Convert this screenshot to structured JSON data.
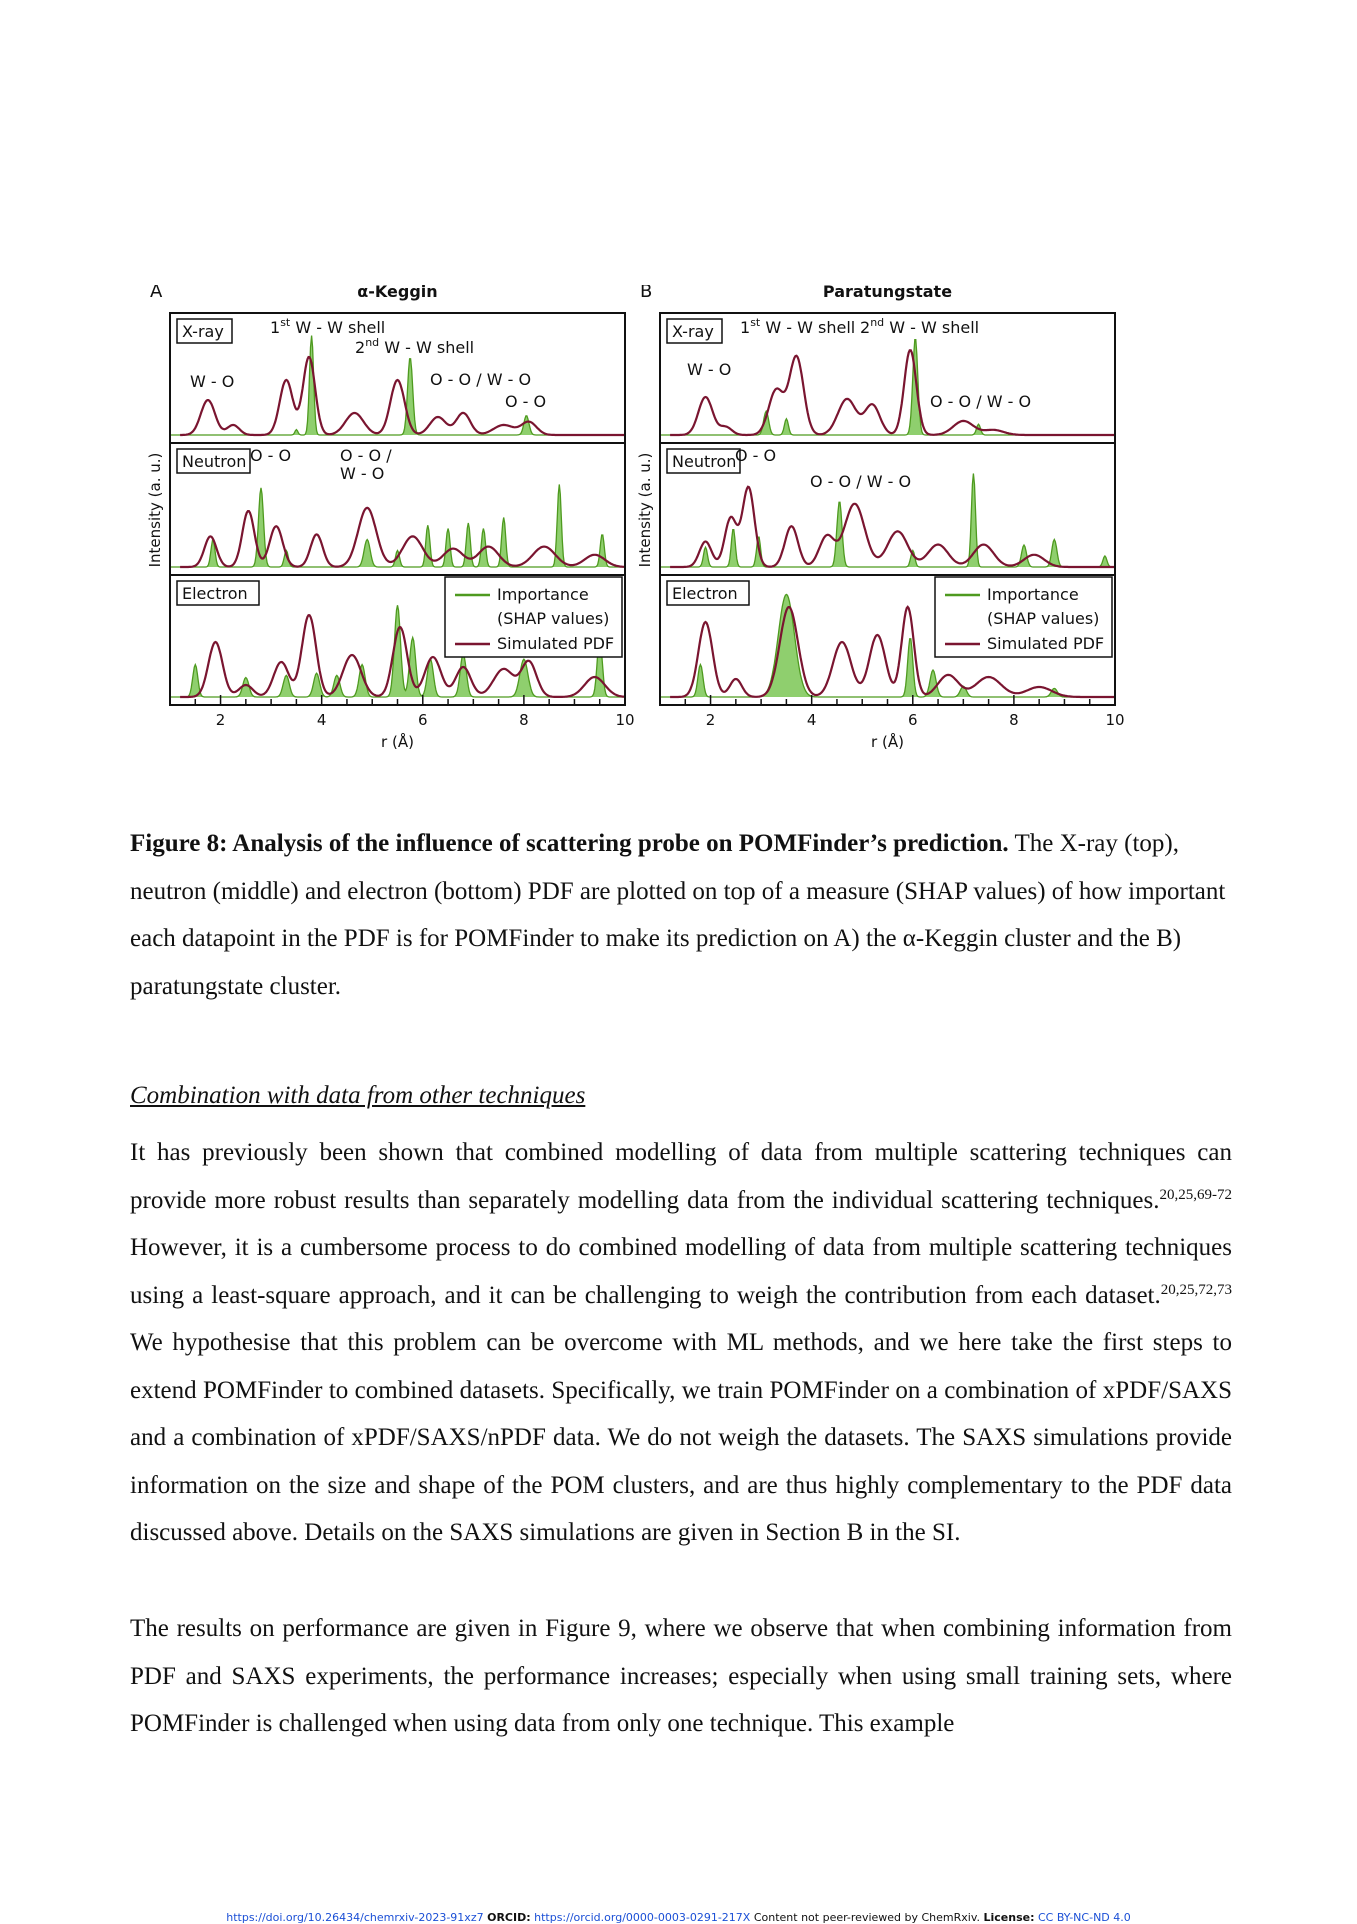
{
  "figure": {
    "panels": [
      {
        "letter": "A",
        "title": "α-Keggin",
        "probes": [
          {
            "name": "X-ray",
            "annotations": [
              {
                "t": "1",
                "sup": "st",
                "rest": " W - W shell"
              },
              {
                "t": "2",
                "sup": "nd",
                "rest": " W - W shell"
              },
              {
                "t": "W - O"
              },
              {
                "t": "O - O / W - O"
              },
              {
                "t": "O - O"
              }
            ]
          },
          {
            "name": "Neutron",
            "annotations": [
              {
                "t": "O - O"
              },
              {
                "t": "O - O /"
              },
              {
                "t": "W - O"
              }
            ]
          },
          {
            "name": "Electron",
            "annotations": []
          }
        ]
      },
      {
        "letter": "B",
        "title": "Paratungstate",
        "probes": [
          {
            "name": "X-ray",
            "annotations": [
              {
                "t": "1",
                "sup": "st",
                "rest": " W - W shell"
              },
              {
                "t": "2",
                "sup": "nd",
                "rest": " W - W shell"
              },
              {
                "t": "W - O"
              },
              {
                "t": "O - O / W - O"
              }
            ]
          },
          {
            "name": "Neutron",
            "annotations": [
              {
                "t": "O - O"
              },
              {
                "t": "O - O / W - O"
              }
            ]
          },
          {
            "name": "Electron",
            "annotations": []
          }
        ]
      }
    ],
    "ylabel": "Intensity (a. u.)",
    "xlabel": "r (Å)",
    "x_ticks": [
      "2",
      "4",
      "6",
      "8",
      "10"
    ],
    "legend": {
      "importance": "Importance",
      "importance2": "(SHAP values)",
      "pdf": "Simulated PDF"
    },
    "colors": {
      "pdf": "#7a1530",
      "importance_fill": "#8fcf6e",
      "importance_line": "#4e9a1f"
    }
  },
  "caption": {
    "label": "Figure 8: Analysis of the influence of scattering probe on POMFinder’s prediction.",
    "text": " The X-ray (top), neutron (middle) and electron (bottom) PDF are plotted on top of a measure (SHAP values) of how important each datapoint in the PDF is for POMFinder to make its prediction on A) the α-Keggin cluster and the B) paratungstate cluster."
  },
  "section": {
    "heading": "Combination with data from other techniques",
    "p1_a": "It has previously been shown that combined modelling of data from multiple scattering techniques can provide more robust results than separately modelling data from the individual scattering techniques.",
    "p1_ref1": "20,25,69-72",
    "p1_b": " However, it is a cumbersome process to do combined modelling of data from multiple scattering techniques using a least-square approach, and it can be challenging to weigh the contribution from each dataset.",
    "p1_ref2": "20,25,72,73",
    "p1_c": " We hypothesise that this problem can be overcome with ML methods, and we here take the first steps to extend POMFinder to combined datasets. Specifically, we train POMFinder on a combination of xPDF/SAXS and a combination of xPDF/SAXS/nPDF data. We do not weigh the datasets. The SAXS simulations provide information on the size and shape of the POM clusters, and are thus highly complementary to the PDF data discussed above. Details on the SAXS simulations are given in Section B in the SI.",
    "p2": "The results on performance are given in Figure 9, where we observe that when combining information from PDF and SAXS experiments, the performance increases; especially when using small training sets, where POMFinder is challenged when using data from only one technique. This example"
  },
  "footer": {
    "doi": "https://doi.org/10.26434/chemrxiv-2023-91xz7",
    "orcid_label": "ORCID:",
    "orcid": "https://orcid.org/0000-0003-0291-217X",
    "notice": "Content not peer-reviewed by ChemRxiv.",
    "license_label": "License:",
    "license": "CC BY-NC-ND 4.0"
  }
}
